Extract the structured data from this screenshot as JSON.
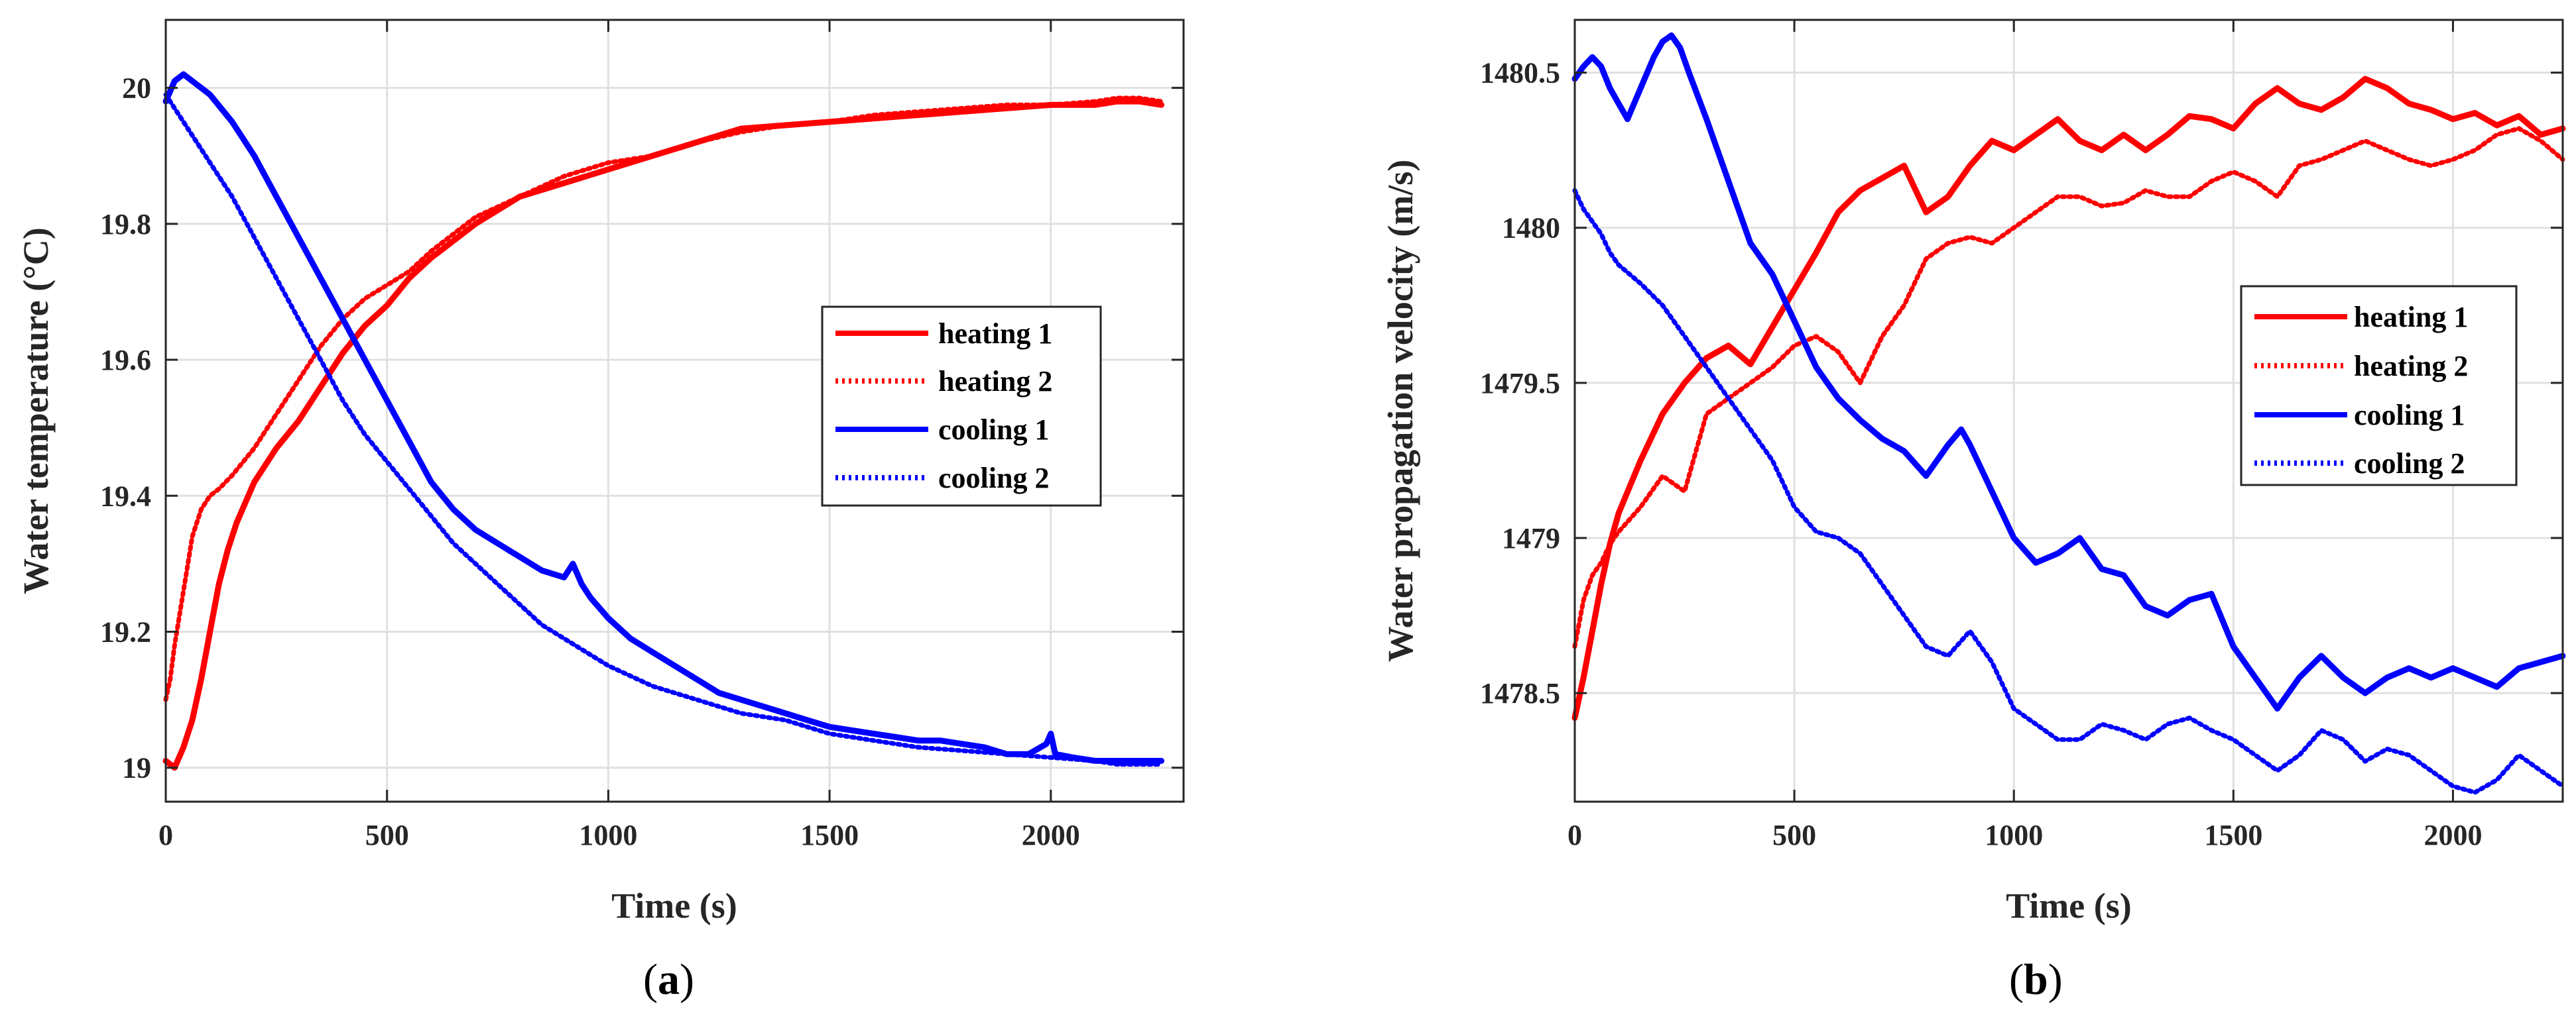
{
  "colors": {
    "heating": "#ff0000",
    "cooling": "#0000ff",
    "axis": "#262626",
    "grid": "#e0e0e0"
  },
  "chart_data": [
    {
      "id": "a",
      "type": "line",
      "caption": "(a)",
      "caption_letter": "a",
      "xlabel": "Time (s)",
      "ylabel": "Water temperature (°C)",
      "xlim": [
        0,
        2300
      ],
      "ylim": [
        18.95,
        20.1
      ],
      "xticks": [
        0,
        500,
        1000,
        1500,
        2000
      ],
      "xtick_labels": [
        "0",
        "500",
        "1000",
        "1500",
        "2000"
      ],
      "yticks": [
        19,
        19.2,
        19.4,
        19.6,
        19.8,
        20
      ],
      "ytick_labels": [
        "19",
        "19.2",
        "19.4",
        "19.6",
        "19.8",
        "20"
      ],
      "grid": true,
      "legend_position": "center-right",
      "series": [
        {
          "name": "heating 1",
          "style": "solid",
          "color": "#ff0000",
          "x": [
            0,
            20,
            40,
            60,
            80,
            100,
            120,
            140,
            160,
            180,
            200,
            250,
            300,
            350,
            400,
            450,
            500,
            550,
            600,
            700,
            800,
            900,
            1000,
            1100,
            1200,
            1300,
            1400,
            1500,
            1600,
            1700,
            1800,
            1900,
            2000,
            2100,
            2150,
            2200,
            2250
          ],
          "y": [
            19.01,
            19.0,
            19.03,
            19.07,
            19.13,
            19.2,
            19.27,
            19.32,
            19.36,
            19.39,
            19.42,
            19.47,
            19.51,
            19.56,
            19.61,
            19.65,
            19.68,
            19.72,
            19.75,
            19.8,
            19.84,
            19.86,
            19.88,
            19.9,
            19.92,
            19.94,
            19.945,
            19.95,
            19.955,
            19.96,
            19.965,
            19.97,
            19.975,
            19.975,
            19.98,
            19.98,
            19.975
          ]
        },
        {
          "name": "heating 2",
          "style": "dotted",
          "color": "#ff0000",
          "x": [
            0,
            10,
            20,
            30,
            40,
            50,
            60,
            70,
            80,
            100,
            120,
            150,
            200,
            250,
            300,
            350,
            400,
            450,
            500,
            550,
            600,
            700,
            800,
            900,
            1000,
            1100,
            1200,
            1300,
            1400,
            1500,
            1600,
            1700,
            1800,
            1900,
            2000,
            2100,
            2150,
            2200,
            2250
          ],
          "y": [
            19.1,
            19.13,
            19.18,
            19.22,
            19.26,
            19.3,
            19.34,
            19.36,
            19.38,
            19.4,
            19.41,
            19.43,
            19.47,
            19.52,
            19.57,
            19.62,
            19.66,
            19.69,
            19.71,
            19.73,
            19.76,
            19.81,
            19.84,
            19.87,
            19.89,
            19.9,
            19.92,
            19.935,
            19.945,
            19.95,
            19.96,
            19.965,
            19.97,
            19.975,
            19.975,
            19.98,
            19.985,
            19.985,
            19.98
          ]
        },
        {
          "name": "cooling 1",
          "style": "solid",
          "color": "#0000ff",
          "x": [
            0,
            20,
            40,
            60,
            80,
            100,
            150,
            200,
            250,
            300,
            350,
            400,
            450,
            500,
            550,
            600,
            650,
            700,
            750,
            800,
            850,
            900,
            920,
            940,
            960,
            1000,
            1050,
            1100,
            1150,
            1200,
            1250,
            1300,
            1350,
            1400,
            1450,
            1500,
            1550,
            1600,
            1650,
            1700,
            1750,
            1800,
            1850,
            1900,
            1950,
            1990,
            2000,
            2010,
            2050,
            2100,
            2150,
            2200,
            2250
          ],
          "y": [
            19.98,
            20.01,
            20.02,
            20.01,
            20.0,
            19.99,
            19.95,
            19.9,
            19.84,
            19.78,
            19.72,
            19.66,
            19.6,
            19.54,
            19.48,
            19.42,
            19.38,
            19.35,
            19.33,
            19.31,
            19.29,
            19.28,
            19.3,
            19.27,
            19.25,
            19.22,
            19.19,
            19.17,
            19.15,
            19.13,
            19.11,
            19.1,
            19.09,
            19.08,
            19.07,
            19.06,
            19.055,
            19.05,
            19.045,
            19.04,
            19.04,
            19.035,
            19.03,
            19.02,
            19.02,
            19.035,
            19.05,
            19.02,
            19.015,
            19.01,
            19.01,
            19.01,
            19.01
          ]
        },
        {
          "name": "cooling 2",
          "style": "dotted",
          "color": "#0000ff",
          "x": [
            0,
            20,
            40,
            60,
            80,
            100,
            150,
            200,
            250,
            300,
            350,
            400,
            450,
            500,
            550,
            600,
            650,
            700,
            750,
            800,
            850,
            900,
            950,
            1000,
            1100,
            1200,
            1300,
            1400,
            1500,
            1600,
            1700,
            1800,
            1900,
            2000,
            2100,
            2150,
            2200,
            2250
          ],
          "y": [
            19.99,
            19.97,
            19.95,
            19.93,
            19.91,
            19.89,
            19.84,
            19.78,
            19.72,
            19.66,
            19.6,
            19.54,
            19.49,
            19.45,
            19.41,
            19.37,
            19.33,
            19.3,
            19.27,
            19.24,
            19.21,
            19.19,
            19.17,
            19.15,
            19.12,
            19.1,
            19.08,
            19.07,
            19.05,
            19.04,
            19.03,
            19.025,
            19.02,
            19.015,
            19.01,
            19.005,
            19.005,
            19.005
          ]
        }
      ]
    },
    {
      "id": "b",
      "type": "line",
      "caption": "(b)",
      "caption_letter": "b",
      "xlabel": "Time (s)",
      "ylabel": "Water propagation velocity (m/s)",
      "xlim": [
        0,
        2250
      ],
      "ylim": [
        1478.15,
        1480.67
      ],
      "xticks": [
        0,
        500,
        1000,
        1500,
        2000
      ],
      "xtick_labels": [
        "0",
        "500",
        "1000",
        "1500",
        "2000"
      ],
      "yticks": [
        1478.5,
        1479,
        1479.5,
        1480,
        1480.5
      ],
      "ytick_labels": [
        "1478.5",
        "1479",
        "1479.5",
        "1480",
        "1480.5"
      ],
      "grid": true,
      "legend_position": "center-right",
      "series": [
        {
          "name": "heating 1",
          "style": "solid",
          "color": "#ff0000",
          "x": [
            0,
            20,
            40,
            60,
            80,
            100,
            150,
            200,
            250,
            300,
            350,
            400,
            450,
            500,
            550,
            600,
            650,
            700,
            750,
            800,
            850,
            900,
            950,
            1000,
            1050,
            1100,
            1150,
            1200,
            1250,
            1300,
            1350,
            1400,
            1450,
            1500,
            1550,
            1600,
            1650,
            1700,
            1750,
            1800,
            1850,
            1900,
            1950,
            2000,
            2050,
            2100,
            2150,
            2200,
            2250
          ],
          "y": [
            1478.42,
            1478.55,
            1478.7,
            1478.85,
            1478.98,
            1479.08,
            1479.25,
            1479.4,
            1479.5,
            1479.58,
            1479.62,
            1479.56,
            1479.68,
            1479.8,
            1479.92,
            1480.05,
            1480.12,
            1480.16,
            1480.2,
            1480.05,
            1480.1,
            1480.2,
            1480.28,
            1480.25,
            1480.3,
            1480.35,
            1480.28,
            1480.25,
            1480.3,
            1480.25,
            1480.3,
            1480.36,
            1480.35,
            1480.32,
            1480.4,
            1480.45,
            1480.4,
            1480.38,
            1480.42,
            1480.48,
            1480.45,
            1480.4,
            1480.38,
            1480.35,
            1480.37,
            1480.33,
            1480.36,
            1480.3,
            1480.32
          ]
        },
        {
          "name": "heating 2",
          "style": "dotted",
          "color": "#ff0000",
          "x": [
            0,
            20,
            40,
            60,
            80,
            100,
            150,
            200,
            250,
            300,
            350,
            400,
            450,
            500,
            550,
            600,
            650,
            700,
            750,
            800,
            850,
            900,
            950,
            1000,
            1050,
            1100,
            1150,
            1200,
            1250,
            1300,
            1350,
            1400,
            1450,
            1500,
            1550,
            1600,
            1650,
            1700,
            1750,
            1800,
            1850,
            1900,
            1950,
            2000,
            2050,
            2100,
            2150,
            2200,
            2250
          ],
          "y": [
            1478.65,
            1478.8,
            1478.88,
            1478.92,
            1478.98,
            1479.02,
            1479.1,
            1479.2,
            1479.15,
            1479.4,
            1479.45,
            1479.5,
            1479.55,
            1479.62,
            1479.65,
            1479.6,
            1479.5,
            1479.65,
            1479.75,
            1479.9,
            1479.95,
            1479.97,
            1479.95,
            1480.0,
            1480.05,
            1480.1,
            1480.1,
            1480.07,
            1480.08,
            1480.12,
            1480.1,
            1480.1,
            1480.15,
            1480.18,
            1480.15,
            1480.1,
            1480.2,
            1480.22,
            1480.25,
            1480.28,
            1480.25,
            1480.22,
            1480.2,
            1480.22,
            1480.25,
            1480.3,
            1480.32,
            1480.28,
            1480.22
          ]
        },
        {
          "name": "cooling 1",
          "style": "solid",
          "color": "#0000ff",
          "x": [
            0,
            20,
            40,
            60,
            80,
            100,
            120,
            150,
            180,
            200,
            220,
            240,
            260,
            300,
            350,
            400,
            450,
            500,
            550,
            600,
            650,
            700,
            750,
            800,
            850,
            880,
            900,
            950,
            1000,
            1050,
            1100,
            1150,
            1200,
            1250,
            1300,
            1350,
            1400,
            1450,
            1500,
            1550,
            1600,
            1650,
            1700,
            1750,
            1800,
            1850,
            1900,
            1950,
            2000,
            2050,
            2100,
            2150,
            2200,
            2250
          ],
          "y": [
            1480.48,
            1480.52,
            1480.55,
            1480.52,
            1480.45,
            1480.4,
            1480.35,
            1480.45,
            1480.55,
            1480.6,
            1480.62,
            1480.58,
            1480.5,
            1480.35,
            1480.15,
            1479.95,
            1479.85,
            1479.7,
            1479.55,
            1479.45,
            1479.38,
            1479.32,
            1479.28,
            1479.2,
            1479.3,
            1479.35,
            1479.3,
            1479.15,
            1479.0,
            1478.92,
            1478.95,
            1479.0,
            1478.9,
            1478.88,
            1478.78,
            1478.75,
            1478.8,
            1478.82,
            1478.65,
            1478.55,
            1478.45,
            1478.55,
            1478.62,
            1478.55,
            1478.5,
            1478.55,
            1478.58,
            1478.55,
            1478.58,
            1478.55,
            1478.52,
            1478.58,
            1478.6,
            1478.62
          ]
        },
        {
          "name": "cooling 2",
          "style": "dotted",
          "color": "#0000ff",
          "x": [
            0,
            20,
            40,
            60,
            80,
            100,
            150,
            200,
            250,
            300,
            350,
            400,
            450,
            500,
            550,
            600,
            650,
            700,
            750,
            800,
            850,
            900,
            950,
            1000,
            1050,
            1100,
            1150,
            1200,
            1250,
            1300,
            1350,
            1400,
            1450,
            1500,
            1550,
            1600,
            1650,
            1700,
            1750,
            1800,
            1850,
            1900,
            1950,
            2000,
            2050,
            2100,
            2150,
            2200,
            2250
          ],
          "y": [
            1480.12,
            1480.06,
            1480.02,
            1479.98,
            1479.92,
            1479.88,
            1479.82,
            1479.75,
            1479.65,
            1479.55,
            1479.45,
            1479.35,
            1479.25,
            1479.1,
            1479.02,
            1479.0,
            1478.95,
            1478.85,
            1478.75,
            1478.65,
            1478.62,
            1478.7,
            1478.6,
            1478.45,
            1478.4,
            1478.35,
            1478.35,
            1478.4,
            1478.38,
            1478.35,
            1478.4,
            1478.42,
            1478.38,
            1478.35,
            1478.3,
            1478.25,
            1478.3,
            1478.38,
            1478.35,
            1478.28,
            1478.32,
            1478.3,
            1478.25,
            1478.2,
            1478.18,
            1478.22,
            1478.3,
            1478.25,
            1478.2
          ]
        }
      ]
    }
  ]
}
